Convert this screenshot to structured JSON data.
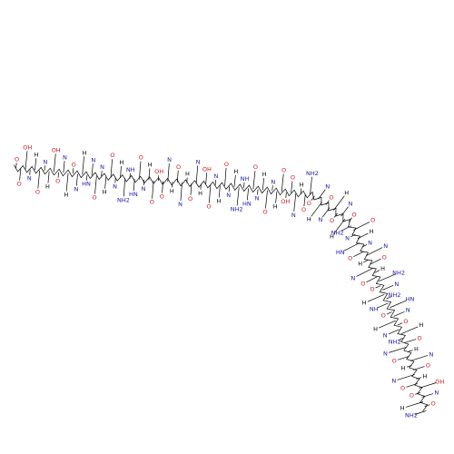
{
  "atom_labels": [
    "O",
    "O",
    "OH",
    "N",
    "H",
    "O",
    "N",
    "H",
    "OH",
    "O",
    "N",
    "H",
    "O",
    "N",
    "H",
    "HN",
    "N",
    "O",
    "N",
    "H",
    "O",
    "N",
    "H",
    "NH2",
    "NH",
    "HN",
    "O",
    "N",
    "H",
    "O",
    "OH",
    "O",
    "N",
    "H",
    "O",
    "N",
    "H",
    "O",
    "N",
    "H",
    "OH",
    "O",
    "N",
    "H",
    "O",
    "N",
    "H",
    "NH2",
    "NH",
    "HN",
    "O",
    "N",
    "H",
    "O",
    "N",
    "H",
    "O",
    "OH",
    "O",
    "N",
    "H",
    "O",
    "NH2",
    "O",
    "N",
    "H",
    "O",
    "N",
    "H",
    "O",
    "N",
    "H",
    "O",
    "NH2",
    "O",
    "N",
    "H",
    "HN",
    "N",
    "O",
    "N",
    "H",
    "O",
    "N",
    "H",
    "O",
    "NH2",
    "O",
    "N",
    "H",
    "NH2",
    "NH",
    "HN",
    "O",
    "N",
    "H",
    "O",
    "N",
    "H",
    "NH2",
    "O",
    "N",
    "H",
    "O",
    "N",
    "H",
    "O",
    "N",
    "H",
    "O",
    "OH",
    "O",
    "N",
    "H",
    "O",
    "NH2"
  ]
}
